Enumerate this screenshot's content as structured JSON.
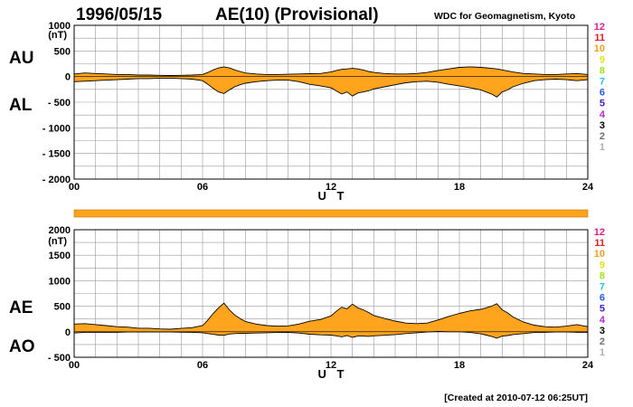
{
  "header": {
    "date": "1996/05/15",
    "title": "AE(10) (Provisional)",
    "source": "WDC for Geomagnetism, Kyoto"
  },
  "footer": {
    "created": "[Created at 2010-07-12 06:25UT]"
  },
  "station_numbers": [
    {
      "label": "12",
      "color": "#e0208a"
    },
    {
      "label": "11",
      "color": "#e02020"
    },
    {
      "label": "10",
      "color": "#f0a020"
    },
    {
      "label": "9",
      "color": "#e0e020"
    },
    {
      "label": "8",
      "color": "#a0e020"
    },
    {
      "label": "7",
      "color": "#20c8e0"
    },
    {
      "label": "6",
      "color": "#2060e0"
    },
    {
      "label": "5",
      "color": "#4020c0"
    },
    {
      "label": "4",
      "color": "#c020e0"
    },
    {
      "label": "3",
      "color": "#000000"
    },
    {
      "label": "2",
      "color": "#707070"
    },
    {
      "label": "1",
      "color": "#b0b0b0"
    }
  ],
  "colors": {
    "fill": "#ffa41c",
    "line": "#000000",
    "grid": "#9a9a9a",
    "bar": "#ffa41c"
  },
  "chart_data": [
    {
      "type": "area",
      "name": "AU/AL",
      "labels_upper": "AU",
      "labels_lower": "AL",
      "unit": "(nT)",
      "xlabel": "U T",
      "xlim": [
        0,
        24
      ],
      "ylim": [
        -2000,
        1000
      ],
      "xticks": [
        {
          "v": 0,
          "t": "00"
        },
        {
          "v": 6,
          "t": "06"
        },
        {
          "v": 12,
          "t": "12"
        },
        {
          "v": 18,
          "t": "18"
        },
        {
          "v": 24,
          "t": "24"
        }
      ],
      "yticks": [
        {
          "v": 1000,
          "t": "1000"
        },
        {
          "v": 500,
          "t": "500"
        },
        {
          "v": 0,
          "t": "0"
        },
        {
          "v": -500,
          "t": "- 500"
        },
        {
          "v": -1000,
          "t": "- 1000"
        },
        {
          "v": -1500,
          "t": "- 1500"
        },
        {
          "v": -2000,
          "t": "- 2000"
        }
      ],
      "x": [
        0,
        0.5,
        1,
        1.5,
        2,
        2.5,
        3,
        3.5,
        4,
        4.5,
        5,
        5.5,
        6,
        6.25,
        6.5,
        6.75,
        7,
        7.25,
        7.5,
        7.75,
        8,
        8.5,
        9,
        9.5,
        10,
        10.5,
        11,
        11.5,
        12,
        12.25,
        12.5,
        12.75,
        13,
        13.25,
        13.5,
        13.75,
        14,
        14.5,
        15,
        15.5,
        16,
        16.5,
        17,
        17.5,
        18,
        18.5,
        19,
        19.25,
        19.5,
        19.75,
        20,
        20.25,
        20.5,
        21,
        21.5,
        22,
        22.5,
        23,
        23.5,
        24
      ],
      "upper": [
        50,
        70,
        60,
        50,
        40,
        40,
        30,
        30,
        25,
        20,
        25,
        30,
        40,
        80,
        130,
        170,
        190,
        170,
        130,
        100,
        70,
        50,
        40,
        40,
        45,
        50,
        55,
        60,
        90,
        120,
        140,
        150,
        160,
        150,
        130,
        100,
        80,
        60,
        50,
        50,
        60,
        80,
        120,
        150,
        180,
        190,
        180,
        170,
        160,
        150,
        130,
        110,
        90,
        60,
        50,
        40,
        40,
        50,
        60,
        40
      ],
      "lower": [
        -100,
        -90,
        -80,
        -70,
        -60,
        -50,
        -40,
        -40,
        -30,
        -30,
        -40,
        -50,
        -80,
        -150,
        -230,
        -300,
        -330,
        -260,
        -200,
        -160,
        -130,
        -100,
        -80,
        -70,
        -70,
        -100,
        -150,
        -180,
        -220,
        -280,
        -340,
        -300,
        -380,
        -320,
        -300,
        -280,
        -240,
        -200,
        -160,
        -120,
        -100,
        -90,
        -110,
        -150,
        -180,
        -220,
        -260,
        -300,
        -340,
        -400,
        -300,
        -260,
        -200,
        -130,
        -80,
        -60,
        -50,
        -60,
        -80,
        -60
      ]
    },
    {
      "type": "area",
      "name": "AE/AO",
      "labels_upper": "AE",
      "labels_lower": "AO",
      "unit": "(nT)",
      "xlabel": "U T",
      "xlim": [
        0,
        24
      ],
      "ylim": [
        -500,
        2000
      ],
      "xticks": [
        {
          "v": 0,
          "t": "00"
        },
        {
          "v": 6,
          "t": "06"
        },
        {
          "v": 12,
          "t": "12"
        },
        {
          "v": 18,
          "t": "18"
        },
        {
          "v": 24,
          "t": "24"
        }
      ],
      "yticks": [
        {
          "v": 2000,
          "t": "2000"
        },
        {
          "v": 1500,
          "t": "1500"
        },
        {
          "v": 1000,
          "t": "1000"
        },
        {
          "v": 500,
          "t": "500"
        },
        {
          "v": 0,
          "t": "0"
        },
        {
          "v": -500,
          "t": "- 500"
        }
      ],
      "x": [
        0,
        0.5,
        1,
        1.5,
        2,
        2.5,
        3,
        3.5,
        4,
        4.5,
        5,
        5.5,
        6,
        6.25,
        6.5,
        6.75,
        7,
        7.25,
        7.5,
        7.75,
        8,
        8.5,
        9,
        9.5,
        10,
        10.5,
        11,
        11.5,
        12,
        12.25,
        12.5,
        12.75,
        13,
        13.25,
        13.5,
        13.75,
        14,
        14.5,
        15,
        15.5,
        16,
        16.5,
        17,
        17.5,
        18,
        18.5,
        19,
        19.25,
        19.5,
        19.75,
        20,
        20.25,
        20.5,
        21,
        21.5,
        22,
        22.5,
        23,
        23.5,
        24
      ],
      "upper": [
        150,
        160,
        140,
        120,
        100,
        90,
        70,
        70,
        55,
        50,
        65,
        80,
        120,
        230,
        360,
        470,
        560,
        430,
        330,
        260,
        200,
        150,
        120,
        110,
        115,
        150,
        205,
        240,
        310,
        400,
        480,
        450,
        540,
        470,
        430,
        380,
        320,
        260,
        210,
        170,
        160,
        170,
        230,
        300,
        360,
        410,
        440,
        470,
        500,
        550,
        430,
        370,
        290,
        190,
        130,
        100,
        90,
        110,
        140,
        100
      ],
      "lower": [
        -25,
        -10,
        -10,
        -10,
        -10,
        -5,
        -5,
        -5,
        -3,
        -5,
        -8,
        -10,
        -20,
        -35,
        -50,
        -65,
        -70,
        -45,
        -35,
        -30,
        -30,
        -25,
        -20,
        -15,
        -12,
        -25,
        -48,
        -60,
        -65,
        -80,
        -100,
        -75,
        -110,
        -85,
        -85,
        -90,
        -80,
        -70,
        -55,
        -35,
        -20,
        -5,
        5,
        0,
        0,
        -15,
        -40,
        -65,
        -90,
        -125,
        -85,
        -75,
        -55,
        -35,
        -15,
        -10,
        -5,
        -5,
        -10,
        -10
      ]
    }
  ]
}
